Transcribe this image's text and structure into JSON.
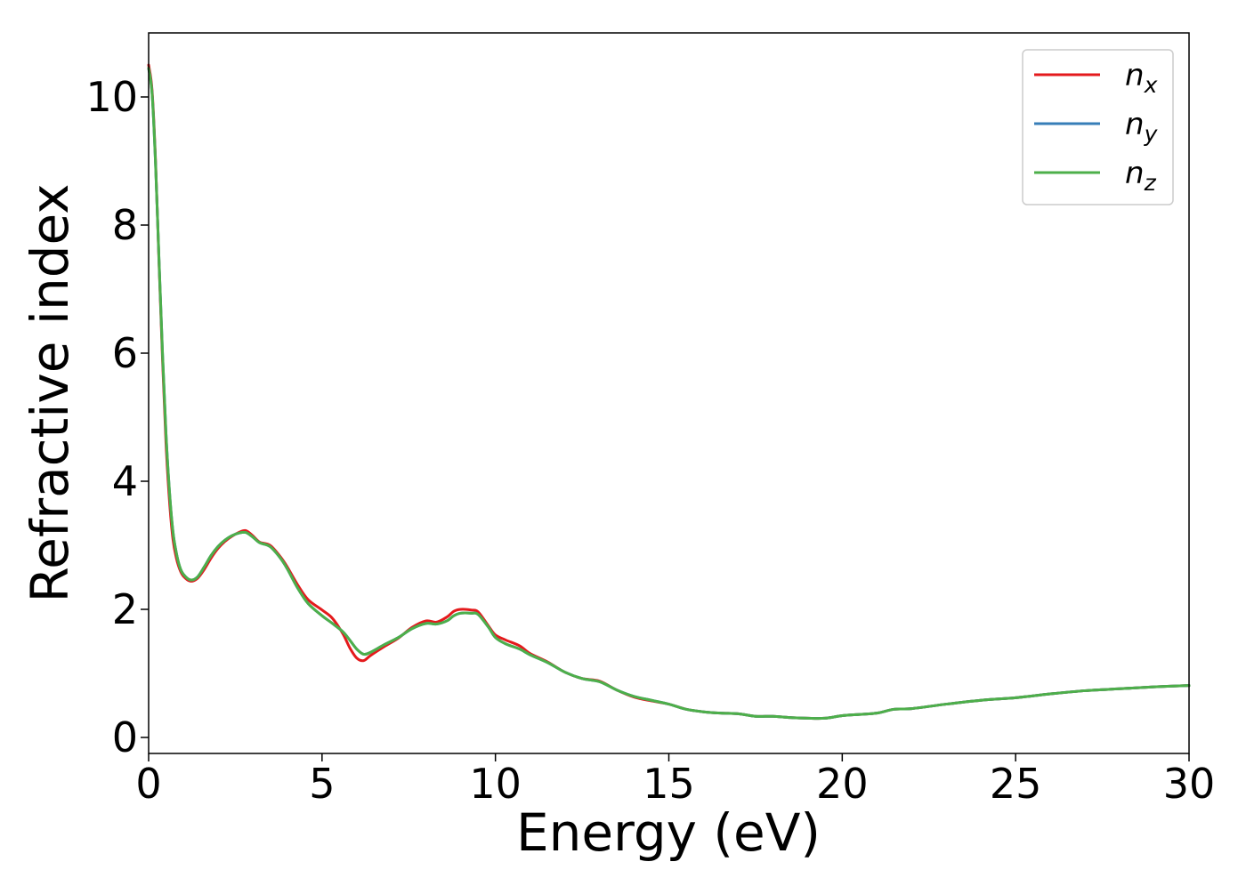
{
  "chart_data": {
    "type": "line",
    "title": "",
    "xlabel": "Energy (eV)",
    "ylabel": "Refractive index",
    "xlim": [
      0,
      30
    ],
    "ylim": [
      -0.25,
      11.0
    ],
    "xticks": [
      0,
      5,
      10,
      15,
      20,
      25,
      30
    ],
    "yticks": [
      0,
      2,
      4,
      6,
      8,
      10
    ],
    "xtick_labels": [
      "0",
      "5",
      "10",
      "15",
      "20",
      "25",
      "30"
    ],
    "ytick_labels": [
      "0",
      "2",
      "4",
      "6",
      "8",
      "10"
    ],
    "grid": false,
    "legend": {
      "position": "top-right",
      "entries": [
        {
          "base": "n",
          "sub": "x",
          "color": "#e41a1c"
        },
        {
          "base": "n",
          "sub": "y",
          "color": "#377eb8"
        },
        {
          "base": "n",
          "sub": "z",
          "color": "#4daf4a"
        }
      ]
    },
    "series": [
      {
        "color": "#e41a1c",
        "x": [
          0.0,
          0.1,
          0.2,
          0.3,
          0.4,
          0.5,
          0.6,
          0.7,
          0.8,
          0.9,
          1.0,
          1.2,
          1.4,
          1.6,
          1.8,
          2.0,
          2.2,
          2.4,
          2.6,
          2.8,
          3.0,
          3.2,
          3.5,
          3.8,
          4.0,
          4.3,
          4.6,
          5.0,
          5.3,
          5.6,
          5.8,
          6.0,
          6.2,
          6.4,
          6.8,
          7.2,
          7.6,
          8.0,
          8.3,
          8.6,
          8.8,
          9.0,
          9.3,
          9.5,
          9.8,
          10.0,
          10.3,
          10.7,
          11.0,
          11.5,
          12.0,
          12.5,
          13.0,
          13.5,
          14.0,
          14.5,
          15.0,
          15.5,
          16.0,
          16.5,
          17.0,
          17.5,
          18.0,
          18.5,
          19.0,
          19.5,
          20.0,
          20.5,
          21.0,
          21.5,
          22.0,
          23.0,
          24.0,
          25.0,
          26.0,
          27.0,
          28.0,
          29.0,
          30.0
        ],
        "y": [
          10.5,
          10.1,
          9.0,
          7.4,
          5.9,
          4.6,
          3.7,
          3.1,
          2.8,
          2.62,
          2.52,
          2.44,
          2.48,
          2.62,
          2.8,
          2.95,
          3.06,
          3.14,
          3.2,
          3.23,
          3.15,
          3.05,
          3.0,
          2.82,
          2.66,
          2.38,
          2.15,
          1.99,
          1.86,
          1.62,
          1.4,
          1.24,
          1.2,
          1.28,
          1.42,
          1.55,
          1.72,
          1.82,
          1.8,
          1.88,
          1.97,
          2.0,
          1.99,
          1.96,
          1.74,
          1.6,
          1.52,
          1.43,
          1.31,
          1.18,
          1.02,
          0.92,
          0.88,
          0.74,
          0.63,
          0.57,
          0.52,
          0.44,
          0.4,
          0.38,
          0.37,
          0.33,
          0.33,
          0.31,
          0.3,
          0.3,
          0.34,
          0.36,
          0.38,
          0.44,
          0.45,
          0.52,
          0.58,
          0.62,
          0.68,
          0.73,
          0.76,
          0.79,
          0.81
        ]
      },
      {
        "color": "#377eb8",
        "x": [
          0.0,
          0.1,
          0.2,
          0.3,
          0.4,
          0.5,
          0.6,
          0.7,
          0.8,
          0.9,
          1.0,
          1.2,
          1.4,
          1.6,
          1.8,
          2.0,
          2.2,
          2.4,
          2.6,
          2.8,
          3.0,
          3.2,
          3.5,
          3.8,
          4.0,
          4.3,
          4.6,
          5.0,
          5.3,
          5.6,
          5.8,
          6.0,
          6.2,
          6.4,
          6.8,
          7.2,
          7.6,
          8.0,
          8.3,
          8.6,
          8.8,
          9.0,
          9.3,
          9.5,
          9.8,
          10.0,
          10.3,
          10.7,
          11.0,
          11.5,
          12.0,
          12.5,
          13.0,
          13.5,
          14.0,
          14.5,
          15.0,
          15.5,
          16.0,
          16.5,
          17.0,
          17.5,
          18.0,
          18.5,
          19.0,
          19.5,
          20.0,
          20.5,
          21.0,
          21.5,
          22.0,
          23.0,
          24.0,
          25.0,
          26.0,
          27.0,
          28.0,
          29.0,
          30.0
        ],
        "y": [
          10.45,
          10.05,
          8.95,
          7.45,
          6.0,
          4.75,
          3.85,
          3.22,
          2.88,
          2.66,
          2.55,
          2.46,
          2.5,
          2.66,
          2.84,
          2.98,
          3.08,
          3.15,
          3.19,
          3.2,
          3.13,
          3.04,
          2.98,
          2.8,
          2.63,
          2.33,
          2.09,
          1.9,
          1.78,
          1.65,
          1.52,
          1.38,
          1.3,
          1.33,
          1.45,
          1.56,
          1.7,
          1.78,
          1.77,
          1.82,
          1.9,
          1.94,
          1.94,
          1.92,
          1.72,
          1.56,
          1.46,
          1.38,
          1.29,
          1.17,
          1.02,
          0.92,
          0.87,
          0.74,
          0.64,
          0.58,
          0.52,
          0.44,
          0.4,
          0.38,
          0.37,
          0.33,
          0.33,
          0.31,
          0.3,
          0.3,
          0.34,
          0.36,
          0.38,
          0.44,
          0.45,
          0.52,
          0.58,
          0.62,
          0.68,
          0.73,
          0.76,
          0.79,
          0.81
        ]
      },
      {
        "color": "#4daf4a",
        "x": [
          0.0,
          0.1,
          0.2,
          0.3,
          0.4,
          0.5,
          0.6,
          0.7,
          0.8,
          0.9,
          1.0,
          1.2,
          1.4,
          1.6,
          1.8,
          2.0,
          2.2,
          2.4,
          2.6,
          2.8,
          3.0,
          3.2,
          3.5,
          3.8,
          4.0,
          4.3,
          4.6,
          5.0,
          5.3,
          5.6,
          5.8,
          6.0,
          6.2,
          6.4,
          6.8,
          7.2,
          7.6,
          8.0,
          8.3,
          8.6,
          8.8,
          9.0,
          9.3,
          9.5,
          9.8,
          10.0,
          10.3,
          10.7,
          11.0,
          11.5,
          12.0,
          12.5,
          13.0,
          13.5,
          14.0,
          14.5,
          15.0,
          15.5,
          16.0,
          16.5,
          17.0,
          17.5,
          18.0,
          18.5,
          19.0,
          19.5,
          20.0,
          20.5,
          21.0,
          21.5,
          22.0,
          23.0,
          24.0,
          25.0,
          26.0,
          27.0,
          28.0,
          29.0,
          30.0
        ],
        "y": [
          10.45,
          10.05,
          8.95,
          7.45,
          6.0,
          4.75,
          3.85,
          3.22,
          2.88,
          2.66,
          2.55,
          2.46,
          2.5,
          2.66,
          2.84,
          2.98,
          3.08,
          3.15,
          3.19,
          3.2,
          3.13,
          3.04,
          2.98,
          2.8,
          2.63,
          2.33,
          2.09,
          1.9,
          1.78,
          1.65,
          1.52,
          1.38,
          1.3,
          1.33,
          1.45,
          1.56,
          1.7,
          1.78,
          1.77,
          1.82,
          1.9,
          1.94,
          1.94,
          1.92,
          1.72,
          1.56,
          1.46,
          1.38,
          1.29,
          1.17,
          1.02,
          0.92,
          0.87,
          0.74,
          0.64,
          0.58,
          0.52,
          0.44,
          0.4,
          0.38,
          0.37,
          0.33,
          0.33,
          0.31,
          0.3,
          0.3,
          0.34,
          0.36,
          0.38,
          0.44,
          0.45,
          0.52,
          0.58,
          0.62,
          0.68,
          0.73,
          0.76,
          0.79,
          0.81
        ]
      }
    ]
  }
}
